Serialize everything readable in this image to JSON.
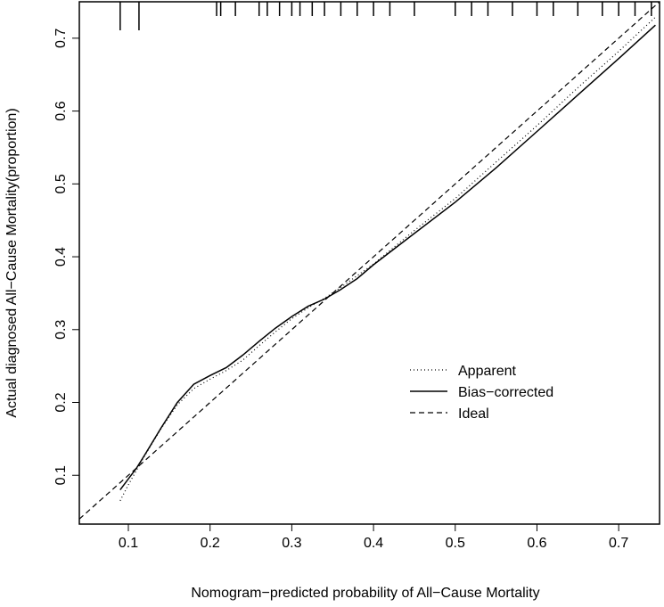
{
  "chart_data": {
    "type": "line",
    "title": "",
    "xlabel": "Nomogram−predicted probability of All−Cause Mortality",
    "ylabel": "Actual diagnosed All−Cause Mortality(proportion)",
    "xlim": [
      0.04,
      0.75
    ],
    "ylim": [
      0.033,
      0.75
    ],
    "xticks": [
      "0.1",
      "0.2",
      "0.3",
      "0.4",
      "0.5",
      "0.6",
      "0.7"
    ],
    "xtick_values": [
      0.1,
      0.2,
      0.3,
      0.4,
      0.5,
      0.6,
      0.7
    ],
    "yticks": [
      "0.1",
      "0.2",
      "0.3",
      "0.4",
      "0.5",
      "0.6",
      "0.7"
    ],
    "ytick_values": [
      0.1,
      0.2,
      0.3,
      0.4,
      0.5,
      0.6,
      0.7
    ],
    "grid": false,
    "legend_position": "bottom-right",
    "series": [
      {
        "name": "Apparent",
        "style": "dotted",
        "x": [
          0.09,
          0.1,
          0.11,
          0.12,
          0.14,
          0.16,
          0.18,
          0.2,
          0.22,
          0.24,
          0.26,
          0.28,
          0.3,
          0.32,
          0.34,
          0.36,
          0.38,
          0.4,
          0.45,
          0.5,
          0.55,
          0.6,
          0.65,
          0.7,
          0.745
        ],
        "y": [
          0.065,
          0.087,
          0.107,
          0.127,
          0.164,
          0.197,
          0.219,
          0.232,
          0.244,
          0.258,
          0.278,
          0.297,
          0.315,
          0.33,
          0.343,
          0.358,
          0.374,
          0.39,
          0.436,
          0.48,
          0.53,
          0.58,
          0.632,
          0.682,
          0.729
        ]
      },
      {
        "name": "Bias−corrected",
        "style": "solid",
        "x": [
          0.09,
          0.1,
          0.11,
          0.12,
          0.14,
          0.16,
          0.18,
          0.2,
          0.22,
          0.24,
          0.26,
          0.28,
          0.3,
          0.32,
          0.34,
          0.36,
          0.38,
          0.4,
          0.45,
          0.5,
          0.55,
          0.6,
          0.65,
          0.7,
          0.745
        ],
        "y": [
          0.08,
          0.095,
          0.11,
          0.128,
          0.165,
          0.2,
          0.225,
          0.237,
          0.248,
          0.265,
          0.284,
          0.302,
          0.318,
          0.332,
          0.342,
          0.355,
          0.37,
          0.389,
          0.432,
          0.475,
          0.522,
          0.572,
          0.622,
          0.672,
          0.718
        ]
      },
      {
        "name": "Ideal",
        "style": "dashed",
        "x": [
          0.04,
          0.75
        ],
        "y": [
          0.04,
          0.75
        ]
      }
    ],
    "rug": [
      0.09,
      0.113,
      0.208,
      0.213,
      0.231,
      0.26,
      0.27,
      0.285,
      0.3,
      0.31,
      0.325,
      0.34,
      0.36,
      0.38,
      0.4,
      0.42,
      0.45,
      0.5,
      0.52,
      0.54,
      0.57,
      0.6,
      0.62,
      0.65,
      0.68,
      0.7,
      0.72,
      0.74
    ]
  }
}
